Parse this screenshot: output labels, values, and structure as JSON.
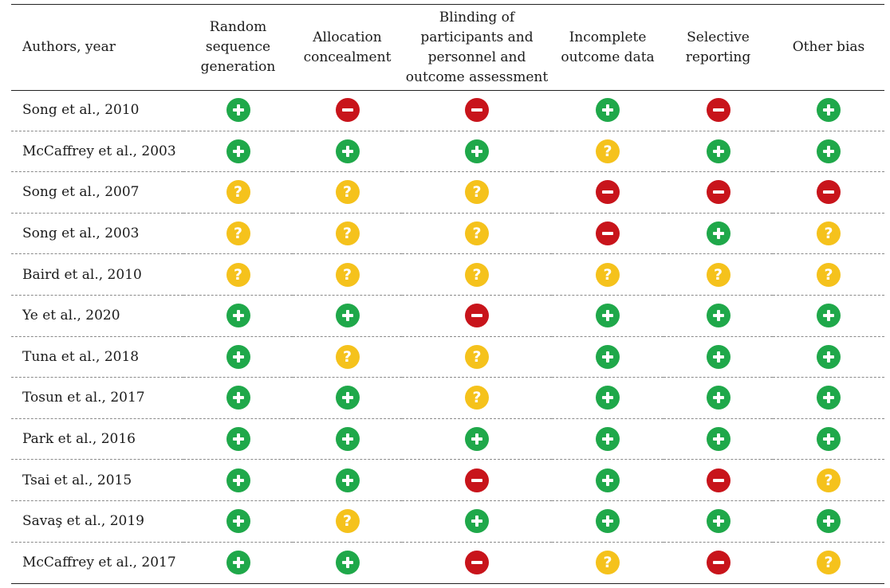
{
  "columns": [
    "Authors, year",
    "Random sequence generation",
    "Allocation concealment",
    "Blinding of participants and personnel and outcome assessment",
    "Incomplete outcome data",
    "Selective reporting",
    "Other bias"
  ],
  "column_lines": [
    [
      "Authors, year"
    ],
    [
      "Random",
      "sequence",
      "generation"
    ],
    [
      "Allocation",
      "concealment"
    ],
    [
      "Blinding of",
      "participants and",
      "personnel and",
      "outcome assessment"
    ],
    [
      "Incomplete",
      "outcome data"
    ],
    [
      "Selective",
      "reporting"
    ],
    [
      "Other bias"
    ]
  ],
  "legend_icons": {
    "plus": "plus-circle-icon (low risk)",
    "minus": "minus-circle-icon (high risk)",
    "unclear": "question-circle-icon (unclear risk)"
  },
  "colors": {
    "low": "#1fa84a",
    "high": "#c8141b",
    "unclear": "#f5c21c"
  },
  "rows": [
    {
      "author": "Song et al., 2010",
      "ratings": [
        "plus",
        "minus",
        "minus",
        "plus",
        "minus",
        "plus"
      ]
    },
    {
      "author": "McCaffrey et al., 2003",
      "ratings": [
        "plus",
        "plus",
        "plus",
        "unclear",
        "plus",
        "plus"
      ]
    },
    {
      "author": "Song et al., 2007",
      "ratings": [
        "unclear",
        "unclear",
        "unclear",
        "minus",
        "minus",
        "minus"
      ]
    },
    {
      "author": "Song et al., 2003",
      "ratings": [
        "unclear",
        "unclear",
        "unclear",
        "minus",
        "plus",
        "unclear"
      ]
    },
    {
      "author": "Baird et al., 2010",
      "ratings": [
        "unclear",
        "unclear",
        "unclear",
        "unclear",
        "unclear",
        "unclear"
      ]
    },
    {
      "author": "Ye et al., 2020",
      "ratings": [
        "plus",
        "plus",
        "minus",
        "plus",
        "plus",
        "plus"
      ]
    },
    {
      "author": "Tuna et al., 2018",
      "ratings": [
        "plus",
        "unclear",
        "unclear",
        "plus",
        "plus",
        "plus"
      ]
    },
    {
      "author": "Tosun et al., 2017",
      "ratings": [
        "plus",
        "plus",
        "unclear",
        "plus",
        "plus",
        "plus"
      ]
    },
    {
      "author": "Park et al., 2016",
      "ratings": [
        "plus",
        "plus",
        "plus",
        "plus",
        "plus",
        "plus"
      ]
    },
    {
      "author": "Tsai et al., 2015",
      "ratings": [
        "plus",
        "plus",
        "minus",
        "plus",
        "minus",
        "unclear"
      ]
    },
    {
      "author": "Savaş et al., 2019",
      "ratings": [
        "plus",
        "unclear",
        "plus",
        "plus",
        "plus",
        "plus"
      ]
    },
    {
      "author": "McCaffrey et al., 2017",
      "ratings": [
        "plus",
        "plus",
        "minus",
        "unclear",
        "minus",
        "unclear"
      ]
    }
  ]
}
